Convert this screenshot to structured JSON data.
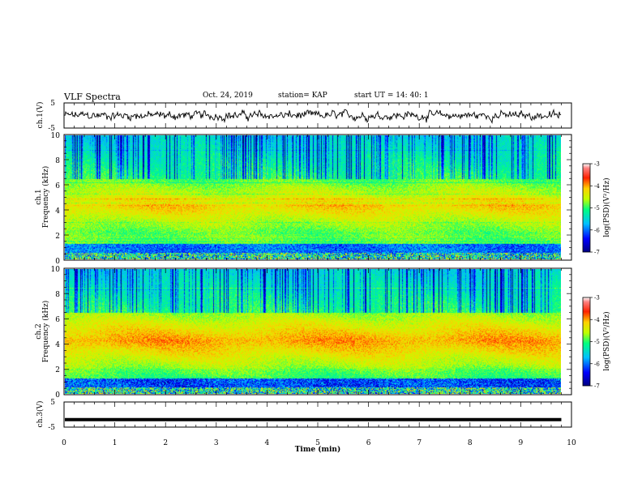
{
  "header": {
    "title": "VLF Spectra",
    "date": "Oct. 24, 2019",
    "station": "station= KAP",
    "start": "start  UT =   14: 40: 1"
  },
  "chart_data": [
    {
      "type": "line",
      "panel": "ch1-waveform",
      "ylabel": "ch.1(V)",
      "ylim": [
        -5,
        5
      ],
      "yticks": [
        5,
        -5
      ],
      "xlim": [
        0,
        10
      ],
      "approx_amplitude_range_V": [
        -3,
        3
      ]
    },
    {
      "type": "heatmap",
      "panel": "ch1-spectrogram",
      "ylabel": "ch.1\nFrequency (kHz)",
      "ylabel_line1": "ch.1",
      "ylabel_line2": "Frequency (kHz)",
      "ylim": [
        0,
        10
      ],
      "yticks": [
        0,
        2,
        4,
        6,
        8,
        10
      ],
      "xlim": [
        0,
        10
      ],
      "colorbar": {
        "label": "log(PSD)(V²/Hz)",
        "range": [
          -7,
          -3
        ],
        "ticks": [
          -3,
          -4,
          -5,
          -6,
          -7
        ]
      },
      "data_end_min": 9.8,
      "dominant_band_kHz": [
        2,
        6.5
      ],
      "dominant_log_psd": -4.2
    },
    {
      "type": "heatmap",
      "panel": "ch2-spectrogram",
      "ylabel_line1": "ch.2",
      "ylabel_line2": "Frequency (kHz)",
      "ylim": [
        0,
        10
      ],
      "yticks": [
        0,
        2,
        4,
        6,
        8,
        10
      ],
      "xlim": [
        0,
        10
      ],
      "colorbar": {
        "label": "log(PSD)(V²/Hz)",
        "range": [
          -7,
          -3
        ],
        "ticks": [
          -3,
          -4,
          -5,
          -6,
          -7
        ]
      },
      "data_end_min": 9.8,
      "dominant_band_kHz": [
        2,
        6.5
      ],
      "dominant_log_psd": -4.0
    },
    {
      "type": "line",
      "panel": "ch3-waveform",
      "ylabel": "ch.3(V)",
      "ylim": [
        -5,
        5
      ],
      "yticks": [
        5,
        -5
      ],
      "xlim": [
        0,
        10
      ],
      "xlabel": "Time (min)",
      "xticks": [
        0,
        1,
        2,
        3,
        4,
        5,
        6,
        7,
        8,
        9,
        10
      ],
      "constant_value_V": -2,
      "data_end_min": 9.8
    }
  ]
}
